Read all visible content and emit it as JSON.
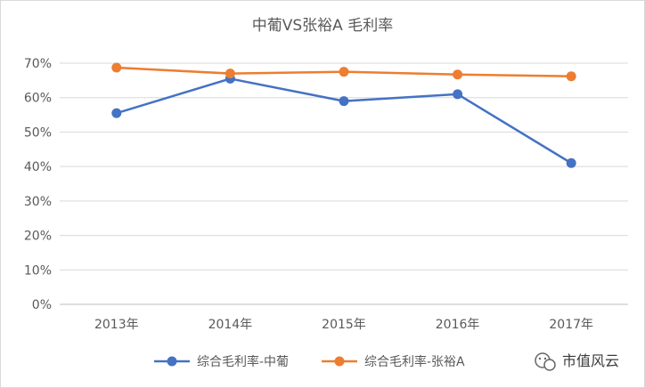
{
  "chart_data": {
    "type": "line",
    "title": "中葡VS张裕A  毛利率",
    "categories": [
      "2013年",
      "2014年",
      "2015年",
      "2016年",
      "2017年"
    ],
    "y_ticks": [
      "0%",
      "10%",
      "20%",
      "30%",
      "40%",
      "50%",
      "60%",
      "70%"
    ],
    "ylim": [
      0,
      0.7
    ],
    "grid": true,
    "legend_position": "bottom",
    "series": [
      {
        "name": "综合毛利率-中葡",
        "color": "#4472c4",
        "values": [
          0.555,
          0.655,
          0.59,
          0.61,
          0.41
        ]
      },
      {
        "name": "综合毛利率-张裕A",
        "color": "#ed7d31",
        "values": [
          0.687,
          0.67,
          0.675,
          0.667,
          0.662
        ]
      }
    ]
  },
  "watermark": {
    "text": "市值风云",
    "icon": "wechat-account-icon"
  }
}
